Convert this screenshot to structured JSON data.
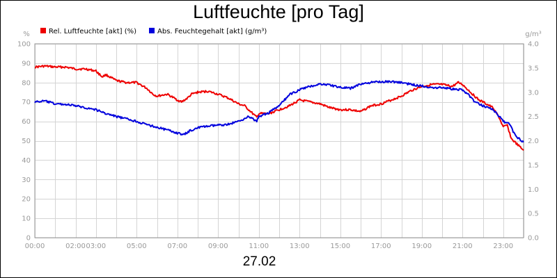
{
  "chart_data": {
    "type": "line",
    "title": "Luftfeuchte [pro Tag]",
    "date_label": "27.02",
    "y_left": {
      "unit": "%",
      "min": 0,
      "max": 100,
      "ticks": [
        "0",
        "10",
        "20",
        "30",
        "40",
        "50",
        "60",
        "70",
        "80",
        "90",
        "100"
      ]
    },
    "y_right": {
      "unit": "g/m³",
      "min": 0,
      "max": 4,
      "ticks": [
        "0.0",
        "0.5",
        "1.0",
        "1.5",
        "2.0",
        "2.5",
        "3.0",
        "3.5",
        "4.0"
      ]
    },
    "x": {
      "min_hours": 0,
      "max_hours": 24,
      "ticks": [
        {
          "label": "00:00",
          "h": 0
        },
        {
          "label": "02:00",
          "h": 2
        },
        {
          "label": "03:00",
          "h": 3
        },
        {
          "label": "05:00",
          "h": 5
        },
        {
          "label": "07:00",
          "h": 7
        },
        {
          "label": "09:00",
          "h": 9
        },
        {
          "label": "11:00",
          "h": 11
        },
        {
          "label": "13:00",
          "h": 13
        },
        {
          "label": "15:00",
          "h": 15
        },
        {
          "label": "17:00",
          "h": 17
        },
        {
          "label": "19:00",
          "h": 19
        },
        {
          "label": "21:00",
          "h": 21
        },
        {
          "label": "23:00",
          "h": 23
        }
      ]
    },
    "grid": true,
    "legend_position": "top-left",
    "series": [
      {
        "name": "Rel. Luftfeuchte [akt] (%)",
        "color": "#ee0000",
        "axis": "left",
        "points": [
          [
            0,
            88
          ],
          [
            0.5,
            88.5
          ],
          [
            1,
            88
          ],
          [
            1.5,
            88
          ],
          [
            2,
            87
          ],
          [
            2.5,
            87
          ],
          [
            3,
            86
          ],
          [
            3.3,
            83
          ],
          [
            3.5,
            84
          ],
          [
            4,
            81
          ],
          [
            4.5,
            80
          ],
          [
            5,
            80
          ],
          [
            5.5,
            77
          ],
          [
            5.8,
            74
          ],
          [
            6,
            73
          ],
          [
            6.5,
            74
          ],
          [
            7,
            71
          ],
          [
            7.2,
            70
          ],
          [
            7.5,
            72
          ],
          [
            7.7,
            74
          ],
          [
            8,
            75
          ],
          [
            8.5,
            75.5
          ],
          [
            9,
            74
          ],
          [
            9.5,
            72
          ],
          [
            10,
            69
          ],
          [
            10.3,
            68
          ],
          [
            10.5,
            66
          ],
          [
            10.9,
            62
          ],
          [
            11,
            64
          ],
          [
            11.5,
            64
          ],
          [
            12,
            66
          ],
          [
            12.5,
            68
          ],
          [
            13,
            71
          ],
          [
            13.5,
            70
          ],
          [
            14,
            69
          ],
          [
            14.5,
            67
          ],
          [
            15,
            66
          ],
          [
            15.5,
            66
          ],
          [
            16,
            65
          ],
          [
            16.5,
            68
          ],
          [
            17,
            69
          ],
          [
            17.5,
            71
          ],
          [
            18,
            73
          ],
          [
            18.5,
            76
          ],
          [
            19,
            78
          ],
          [
            19.5,
            79
          ],
          [
            20,
            79
          ],
          [
            20.5,
            78
          ],
          [
            20.8,
            80
          ],
          [
            21,
            79
          ],
          [
            21.5,
            74
          ],
          [
            21.8,
            71
          ],
          [
            22,
            70
          ],
          [
            22.5,
            67
          ],
          [
            22.8,
            62
          ],
          [
            23,
            57
          ],
          [
            23.2,
            58
          ],
          [
            23.4,
            51
          ],
          [
            23.6,
            49
          ],
          [
            23.8,
            47
          ],
          [
            24,
            45
          ]
        ]
      },
      {
        "name": "Abs. Feuchtegehalt [akt] (g/m³)",
        "color": "#0000dd",
        "axis": "right",
        "points": [
          [
            0,
            2.8
          ],
          [
            0.5,
            2.82
          ],
          [
            1,
            2.76
          ],
          [
            1.5,
            2.75
          ],
          [
            2,
            2.72
          ],
          [
            2.5,
            2.68
          ],
          [
            3,
            2.64
          ],
          [
            3.5,
            2.56
          ],
          [
            4,
            2.5
          ],
          [
            4.5,
            2.45
          ],
          [
            5,
            2.4
          ],
          [
            5.5,
            2.33
          ],
          [
            6,
            2.28
          ],
          [
            6.5,
            2.22
          ],
          [
            7,
            2.16
          ],
          [
            7.3,
            2.12
          ],
          [
            7.6,
            2.2
          ],
          [
            8,
            2.27
          ],
          [
            8.5,
            2.3
          ],
          [
            9,
            2.32
          ],
          [
            9.5,
            2.34
          ],
          [
            10,
            2.4
          ],
          [
            10.5,
            2.5
          ],
          [
            10.9,
            2.4
          ],
          [
            11,
            2.5
          ],
          [
            11.5,
            2.58
          ],
          [
            12,
            2.72
          ],
          [
            12.5,
            2.95
          ],
          [
            13,
            3.05
          ],
          [
            13.5,
            3.12
          ],
          [
            14,
            3.17
          ],
          [
            14.5,
            3.15
          ],
          [
            15,
            3.1
          ],
          [
            15.5,
            3.08
          ],
          [
            16,
            3.17
          ],
          [
            16.5,
            3.2
          ],
          [
            17,
            3.22
          ],
          [
            17.5,
            3.22
          ],
          [
            18,
            3.2
          ],
          [
            18.5,
            3.16
          ],
          [
            19,
            3.13
          ],
          [
            19.5,
            3.1
          ],
          [
            20,
            3.1
          ],
          [
            20.5,
            3.07
          ],
          [
            21,
            3.05
          ],
          [
            21.3,
            2.95
          ],
          [
            21.6,
            2.8
          ],
          [
            22,
            2.72
          ],
          [
            22.5,
            2.65
          ],
          [
            23,
            2.4
          ],
          [
            23.3,
            2.35
          ],
          [
            23.6,
            2.1
          ],
          [
            24,
            1.97
          ]
        ]
      }
    ]
  }
}
